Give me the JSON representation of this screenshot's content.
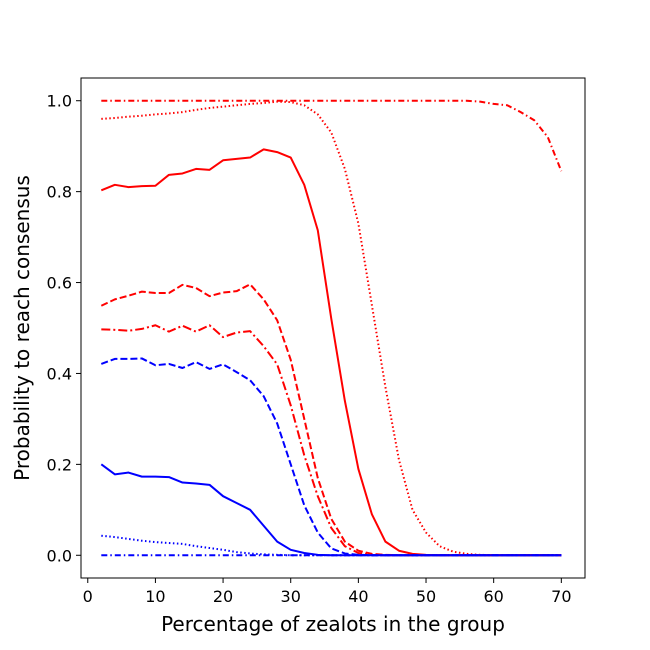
{
  "chart_data": {
    "type": "line",
    "title": "",
    "xlabel": "Percentage of zealots in the group",
    "ylabel": "Probability to reach consensus",
    "xlim": [
      -1,
      73.5
    ],
    "ylim": [
      -0.05,
      1.05
    ],
    "xticks": [
      0,
      10,
      20,
      30,
      40,
      50,
      60,
      70
    ],
    "xtick_labels": [
      "0",
      "10",
      "20",
      "30",
      "40",
      "50",
      "60",
      "70"
    ],
    "yticks": [
      0.0,
      0.2,
      0.4,
      0.6,
      0.8,
      1.0
    ],
    "ytick_labels": [
      "0.0",
      "0.2",
      "0.4",
      "0.6",
      "0.8",
      "1.0"
    ],
    "grid": false,
    "legend": "none",
    "x": [
      2,
      4,
      6,
      8,
      10,
      12,
      14,
      16,
      18,
      20,
      22,
      24,
      26,
      28,
      30,
      32,
      34,
      36,
      38,
      40,
      42,
      44,
      46,
      48,
      50,
      52,
      54,
      56,
      58,
      60,
      62,
      64,
      66,
      68,
      70
    ],
    "series": [
      {
        "color": "#ff0000",
        "dash": "6,3,1.5,3",
        "values": [
          1.0,
          1.0,
          1.0,
          1.0,
          1.0,
          1.0,
          1.0,
          1.0,
          1.0,
          1.0,
          1.0,
          1.0,
          1.0,
          1.0,
          1.0,
          1.0,
          1.0,
          1.0,
          1.0,
          1.0,
          1.0,
          1.0,
          1.0,
          1.0,
          1.0,
          1.0,
          1.0,
          1.0,
          0.998,
          0.993,
          0.99,
          0.975,
          0.957,
          0.92,
          0.845
        ]
      },
      {
        "color": "#ff0000",
        "dash": "1.5,2.5",
        "values": [
          0.96,
          0.962,
          0.965,
          0.967,
          0.97,
          0.972,
          0.975,
          0.98,
          0.984,
          0.987,
          0.99,
          0.993,
          0.995,
          0.998,
          0.997,
          0.99,
          0.97,
          0.93,
          0.85,
          0.73,
          0.55,
          0.37,
          0.21,
          0.1,
          0.05,
          0.02,
          0.008,
          0.003,
          0.001,
          0.0,
          0.0,
          0.0,
          0.0,
          0.0,
          0.0
        ]
      },
      {
        "color": "#ff0000",
        "dash": "",
        "values": [
          0.803,
          0.815,
          0.81,
          0.812,
          0.813,
          0.837,
          0.84,
          0.85,
          0.848,
          0.869,
          0.872,
          0.875,
          0.893,
          0.887,
          0.875,
          0.815,
          0.715,
          0.52,
          0.34,
          0.19,
          0.09,
          0.03,
          0.01,
          0.003,
          0.001,
          0.0,
          0.0,
          0.0,
          0.0,
          0.0,
          0.0,
          0.0,
          0.0,
          0.0,
          0.0
        ]
      },
      {
        "color": "#ff0000",
        "dash": "7,3",
        "values": [
          0.549,
          0.563,
          0.571,
          0.58,
          0.577,
          0.577,
          0.595,
          0.588,
          0.57,
          0.578,
          0.581,
          0.596,
          0.563,
          0.517,
          0.43,
          0.3,
          0.17,
          0.08,
          0.03,
          0.01,
          0.003,
          0.001,
          0.0,
          0.0,
          0.0,
          0.0,
          0.0,
          0.0,
          0.0,
          0.0,
          0.0,
          0.0,
          0.0,
          0.0,
          0.0
        ]
      },
      {
        "color": "#ff0000",
        "dash": "9,3,2,3",
        "values": [
          0.497,
          0.496,
          0.494,
          0.498,
          0.506,
          0.492,
          0.505,
          0.492,
          0.506,
          0.48,
          0.49,
          0.493,
          0.46,
          0.42,
          0.33,
          0.22,
          0.13,
          0.06,
          0.02,
          0.005,
          0.001,
          0.0,
          0.0,
          0.0,
          0.0,
          0.0,
          0.0,
          0.0,
          0.0,
          0.0,
          0.0,
          0.0,
          0.0,
          0.0,
          0.0
        ]
      },
      {
        "color": "#0000ff",
        "dash": "7,3",
        "values": [
          0.421,
          0.432,
          0.432,
          0.433,
          0.418,
          0.421,
          0.412,
          0.425,
          0.41,
          0.42,
          0.403,
          0.385,
          0.35,
          0.29,
          0.2,
          0.11,
          0.05,
          0.015,
          0.004,
          0.001,
          0.0,
          0.0,
          0.0,
          0.0,
          0.0,
          0.0,
          0.0,
          0.0,
          0.0,
          0.0,
          0.0,
          0.0,
          0.0,
          0.0,
          0.0
        ]
      },
      {
        "color": "#0000ff",
        "dash": "",
        "values": [
          0.2,
          0.178,
          0.182,
          0.173,
          0.173,
          0.172,
          0.16,
          0.158,
          0.155,
          0.13,
          0.115,
          0.1,
          0.065,
          0.03,
          0.012,
          0.005,
          0.001,
          0.0,
          0.0,
          0.0,
          0.0,
          0.0,
          0.0,
          0.0,
          0.0,
          0.0,
          0.0,
          0.0,
          0.0,
          0.0,
          0.0,
          0.0,
          0.0,
          0.0,
          0.0
        ]
      },
      {
        "color": "#0000ff",
        "dash": "1.5,2.5",
        "values": [
          0.043,
          0.04,
          0.036,
          0.032,
          0.029,
          0.027,
          0.025,
          0.02,
          0.016,
          0.012,
          0.007,
          0.004,
          0.002,
          0.001,
          0.0,
          0.0,
          0.0,
          0.0,
          0.0,
          0.0,
          0.0,
          0.0,
          0.0,
          0.0,
          0.0,
          0.0,
          0.0,
          0.0,
          0.0,
          0.0,
          0.0,
          0.0,
          0.0,
          0.0,
          0.0
        ]
      },
      {
        "color": "#0000ff",
        "dash": "6,3,1.5,3",
        "values": [
          0.0,
          0.0,
          0.0,
          0.0,
          0.0,
          0.0,
          0.0,
          0.0,
          0.0,
          0.0,
          0.0,
          0.0,
          0.0,
          0.0,
          0.0,
          0.0,
          0.0,
          0.0,
          0.0,
          0.0,
          0.0,
          0.0,
          0.0,
          0.0,
          0.0,
          0.0,
          0.0,
          0.0,
          0.0,
          0.0,
          0.0,
          0.0,
          0.0,
          0.0,
          0.0
        ]
      }
    ]
  }
}
